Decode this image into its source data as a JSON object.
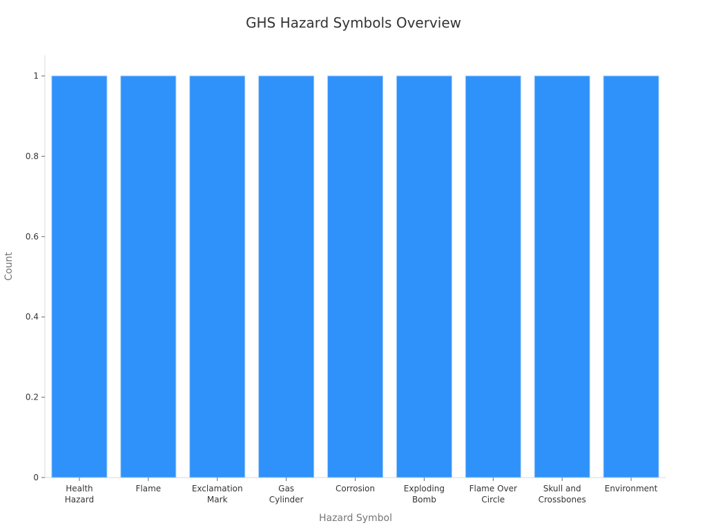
{
  "chart_data": {
    "type": "bar",
    "title": "GHS Hazard Symbols Overview",
    "xlabel": "Hazard Symbol",
    "ylabel": "Count",
    "categories": [
      [
        "Health",
        "Hazard"
      ],
      [
        "Flame"
      ],
      [
        "Exclamation",
        "Mark"
      ],
      [
        "Gas",
        "Cylinder"
      ],
      [
        "Corrosion"
      ],
      [
        "Exploding",
        "Bomb"
      ],
      [
        "Flame Over",
        "Circle"
      ],
      [
        "Skull and",
        "Crossbones"
      ],
      [
        "Environment"
      ]
    ],
    "values": [
      1,
      1,
      1,
      1,
      1,
      1,
      1,
      1,
      1
    ],
    "ylim": [
      0,
      1
    ],
    "yticks": [
      "0",
      "0.2",
      "0.4",
      "0.6",
      "0.8",
      "1"
    ],
    "grid": false,
    "bar_color": "#2f91fa",
    "bar_edge_color": "#a7cdf6"
  }
}
